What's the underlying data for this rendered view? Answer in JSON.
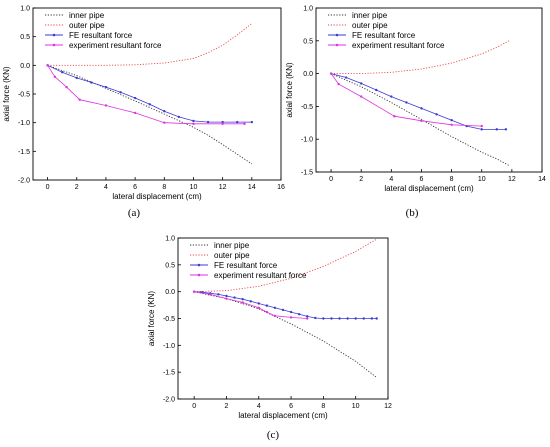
{
  "chart_data": [
    {
      "type": "line",
      "panel_label": "(a)",
      "xlabel": "lateral displacement (cm)",
      "ylabel": "axial force (KN)",
      "xlim": [
        -1,
        16
      ],
      "ylim": [
        -2.0,
        1.0
      ],
      "xticks": [
        "0",
        "2",
        "4",
        "6",
        "8",
        "10",
        "12",
        "14",
        "16"
      ],
      "yticks": [
        "1.0",
        "0.5",
        "0.0",
        "-0.5",
        "-1.0",
        "-1.5",
        "-2.0"
      ],
      "legend_position": "top-left",
      "series": [
        {
          "name": "inner pipe",
          "color": "#333333",
          "style": "dotted",
          "x": [
            0,
            2,
            4,
            6,
            8,
            10,
            11,
            12,
            13,
            14
          ],
          "y": [
            0,
            -0.18,
            -0.4,
            -0.62,
            -0.85,
            -1.08,
            -1.22,
            -1.38,
            -1.55,
            -1.72
          ]
        },
        {
          "name": "outer pipe",
          "color": "#e8474c",
          "style": "dotted",
          "x": [
            0,
            2,
            4,
            6,
            8,
            10,
            11,
            12,
            13,
            14
          ],
          "y": [
            0,
            0,
            0,
            0.01,
            0.04,
            0.12,
            0.22,
            0.35,
            0.53,
            0.73
          ]
        },
        {
          "name": "FE resultant force",
          "color": "#3b3bd6",
          "style": "solid-markers",
          "x": [
            0,
            1,
            2,
            3,
            4,
            5,
            6,
            7,
            8,
            9,
            10,
            11,
            12,
            13,
            14
          ],
          "y": [
            0,
            -0.12,
            -0.22,
            -0.3,
            -0.38,
            -0.47,
            -0.57,
            -0.68,
            -0.8,
            -0.9,
            -0.97,
            -0.99,
            -0.99,
            -0.99,
            -0.99
          ]
        },
        {
          "name": "experiment resultant force",
          "color": "#e033e0",
          "style": "solid-markers",
          "x": [
            0,
            0.5,
            1.3,
            2.2,
            4,
            6,
            8,
            10,
            12,
            13.5
          ],
          "y": [
            0,
            -0.2,
            -0.38,
            -0.6,
            -0.7,
            -0.83,
            -1.0,
            -1.02,
            -1.02,
            -1.02
          ]
        }
      ]
    },
    {
      "type": "line",
      "panel_label": "(b)",
      "xlabel": "lateral displacement (cm)",
      "ylabel": "axial force (KN)",
      "xlim": [
        -1,
        14
      ],
      "ylim": [
        -1.5,
        1.0
      ],
      "xticks": [
        "0",
        "2",
        "4",
        "6",
        "8",
        "10",
        "12",
        "14"
      ],
      "yticks": [
        "1.0",
        "0.5",
        "0.0",
        "-0.5",
        "-1.0",
        "-1.5"
      ],
      "legend_position": "top-left",
      "series": [
        {
          "name": "inner pipe",
          "color": "#333333",
          "style": "dotted",
          "x": [
            0,
            2,
            4,
            6,
            8,
            10,
            11,
            11.8
          ],
          "y": [
            0,
            -0.2,
            -0.44,
            -0.7,
            -0.96,
            -1.2,
            -1.3,
            -1.4
          ]
        },
        {
          "name": "outer pipe",
          "color": "#e8474c",
          "style": "dotted",
          "x": [
            0,
            2,
            4,
            6,
            8,
            10,
            11,
            11.8
          ],
          "y": [
            0,
            0,
            0.02,
            0.07,
            0.16,
            0.3,
            0.4,
            0.5
          ]
        },
        {
          "name": "FE resultant force",
          "color": "#3b3bd6",
          "style": "solid-markers",
          "x": [
            0,
            1,
            2,
            3,
            4,
            5,
            6,
            7,
            8,
            9,
            10,
            11,
            11.6
          ],
          "y": [
            0,
            -0.06,
            -0.15,
            -0.25,
            -0.35,
            -0.44,
            -0.53,
            -0.62,
            -0.71,
            -0.8,
            -0.85,
            -0.85,
            -0.85
          ]
        },
        {
          "name": "experiment resultant force",
          "color": "#e033e0",
          "style": "solid-markers",
          "x": [
            0,
            0.5,
            2,
            4.2,
            6,
            8,
            10
          ],
          "y": [
            0,
            -0.16,
            -0.35,
            -0.65,
            -0.72,
            -0.78,
            -0.8
          ]
        }
      ]
    },
    {
      "type": "line",
      "panel_label": "(c)",
      "xlabel": "lateral displacement (cm)",
      "ylabel": "axial force (KN)",
      "xlim": [
        -1,
        12
      ],
      "ylim": [
        -2.0,
        1.0
      ],
      "xticks": [
        "0",
        "2",
        "4",
        "6",
        "8",
        "10",
        "12"
      ],
      "yticks": [
        "1.0",
        "0.5",
        "0.0",
        "-0.5",
        "-1.0",
        "-1.5",
        "-2.0"
      ],
      "legend_position": "top-left",
      "series": [
        {
          "name": "inner pipe",
          "color": "#333333",
          "style": "dotted",
          "x": [
            0,
            2,
            4,
            6,
            8,
            10,
            11.3
          ],
          "y": [
            0,
            -0.13,
            -0.32,
            -0.6,
            -0.92,
            -1.3,
            -1.6
          ]
        },
        {
          "name": "outer pipe",
          "color": "#e8474c",
          "style": "dotted",
          "x": [
            0,
            2,
            4,
            6,
            8,
            10,
            11.3
          ],
          "y": [
            0,
            0.02,
            0.1,
            0.25,
            0.47,
            0.75,
            0.98
          ]
        },
        {
          "name": "FE resultant force",
          "color": "#3b3bd6",
          "style": "solid-markers",
          "x": [
            0,
            0.5,
            1,
            1.5,
            2,
            2.5,
            3,
            3.5,
            4,
            4.5,
            5,
            5.5,
            6,
            6.5,
            7,
            7.5,
            8,
            8.5,
            9,
            9.5,
            10,
            10.5,
            11,
            11.3
          ],
          "y": [
            0,
            -0.01,
            -0.03,
            -0.05,
            -0.08,
            -0.11,
            -0.14,
            -0.18,
            -0.22,
            -0.26,
            -0.3,
            -0.34,
            -0.38,
            -0.42,
            -0.46,
            -0.49,
            -0.5,
            -0.5,
            -0.5,
            -0.5,
            -0.5,
            -0.5,
            -0.5,
            -0.5
          ]
        },
        {
          "name": "experiment resultant force",
          "color": "#e033e0",
          "style": "solid-markers",
          "x": [
            0,
            1,
            2,
            3,
            4,
            4.5,
            5,
            6,
            7
          ],
          "y": [
            0,
            -0.05,
            -0.13,
            -0.2,
            -0.3,
            -0.38,
            -0.45,
            -0.48,
            -0.5
          ]
        }
      ]
    }
  ]
}
